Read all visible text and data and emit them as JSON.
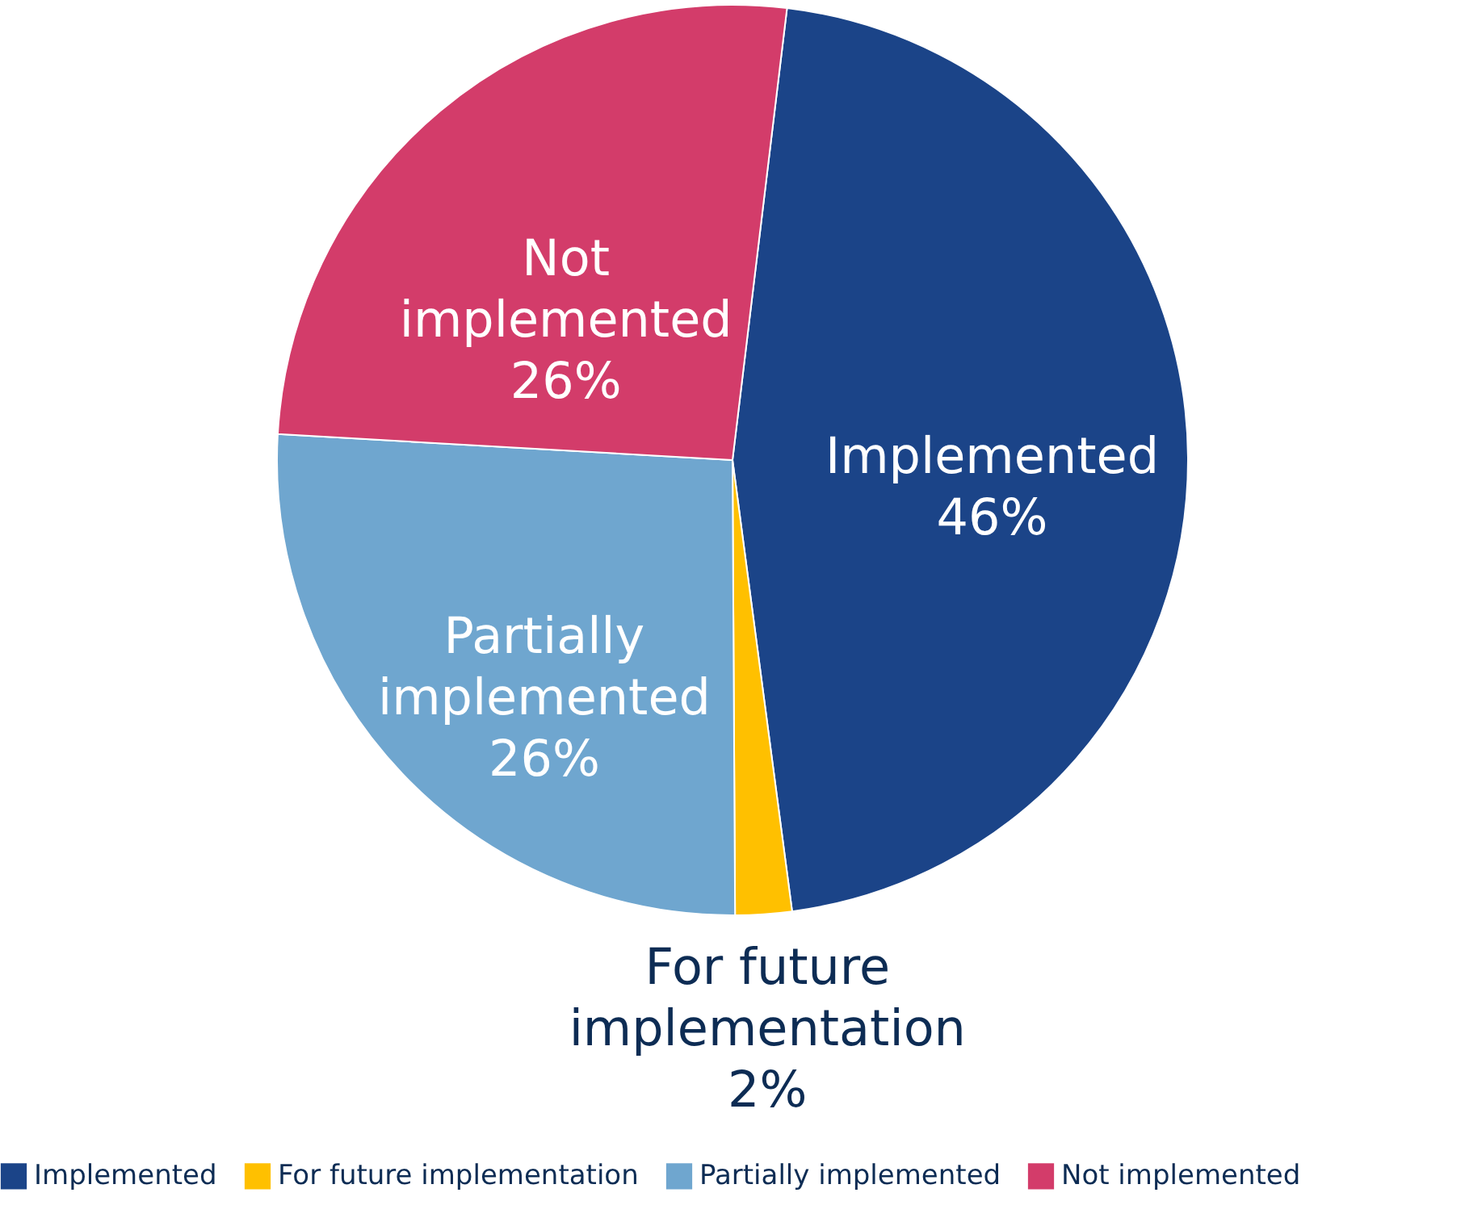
{
  "chart_data": {
    "type": "pie",
    "categories": [
      "Implemented",
      "For future implementation",
      "Partially implemented",
      "Not implemented"
    ],
    "values": [
      46,
      2,
      26,
      26
    ],
    "colors": [
      "#1b4488",
      "#ffc000",
      "#6fa6cf",
      "#d33c6a"
    ],
    "value_labels": [
      "46%",
      "2%",
      "26%",
      "26%"
    ],
    "legend": "bottom"
  }
}
